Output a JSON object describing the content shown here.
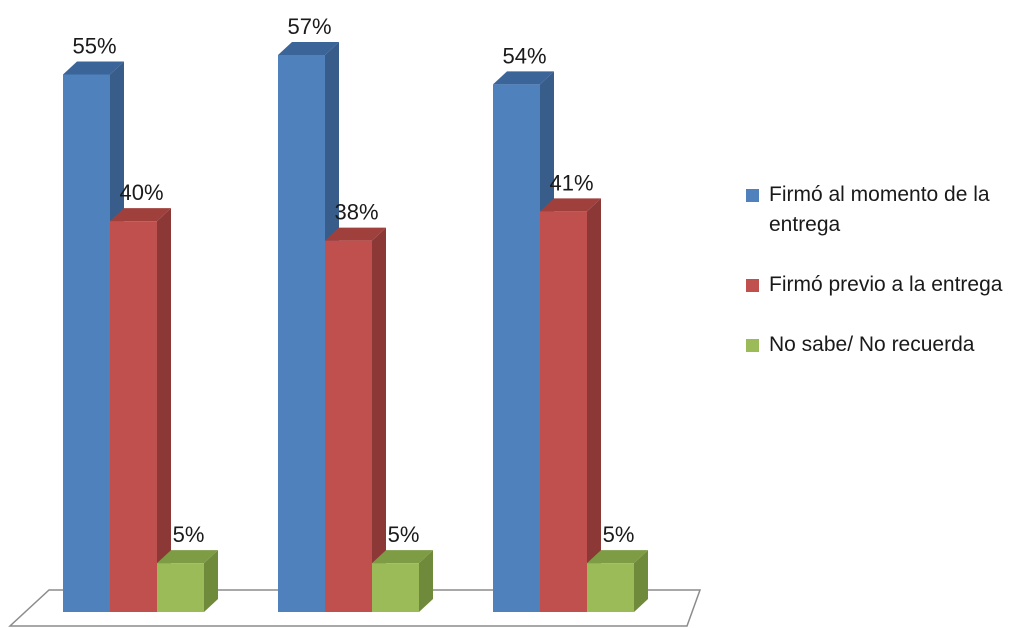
{
  "chart_data": {
    "type": "bar",
    "three_d": true,
    "categories": [
      "",
      "",
      ""
    ],
    "series": [
      {
        "name": "Firmó al momento de la entrega",
        "values": [
          55,
          57,
          54
        ],
        "labels": [
          "55%",
          "57%",
          "54%"
        ],
        "color": "#4f81bd",
        "side_color": "#385d8a",
        "top_color": "#3b6498"
      },
      {
        "name": "Firmó previo a la entrega",
        "values": [
          40,
          38,
          41
        ],
        "labels": [
          "40%",
          "38%",
          "41%"
        ],
        "color": "#c0504d",
        "side_color": "#8c3836",
        "top_color": "#a0403d"
      },
      {
        "name": "No sabe/ No recuerda",
        "values": [
          5,
          5,
          5
        ],
        "labels": [
          "5%",
          "5%",
          "5%"
        ],
        "color": "#9bbb59",
        "side_color": "#6f8a3a",
        "top_color": "#7d9c44"
      }
    ],
    "ylim": [
      0,
      60
    ],
    "grid": false,
    "legend_position": "right"
  }
}
